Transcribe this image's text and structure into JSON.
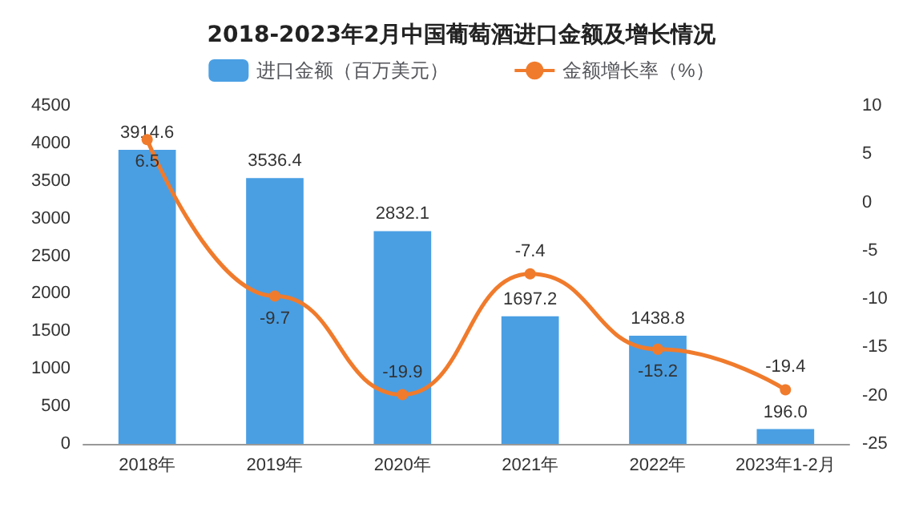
{
  "chart_data": {
    "type": "bar",
    "title": "2018-2023年2月中国葡萄酒进口金额及增长情况",
    "categories": [
      "2018年",
      "2019年",
      "2020年",
      "2021年",
      "2022年",
      "2023年1-2月"
    ],
    "series": [
      {
        "name": "进口金额（百万美元）",
        "color": "#4a9fe3",
        "values": [
          3914.6,
          3536.4,
          2832.1,
          1697.2,
          1438.8,
          196.0
        ],
        "value_labels": [
          "3914.6",
          "3536.4",
          "2832.1",
          "1697.2",
          "1438.8",
          "196.0"
        ]
      },
      {
        "name": "金额增长率（%）",
        "type": "line",
        "axis": "y2",
        "color": "#f07b2c",
        "values": [
          6.5,
          -9.7,
          -19.9,
          -7.4,
          -15.2,
          -19.4
        ],
        "value_labels": [
          "6.5",
          "-9.7",
          "-19.9",
          "-7.4",
          "-15.2",
          "-19.4"
        ]
      }
    ],
    "ylim": [
      0,
      4500
    ],
    "yticks": [
      0,
      500,
      1000,
      1500,
      2000,
      2500,
      3000,
      3500,
      4000,
      4500
    ],
    "y2lim": [
      -25,
      10
    ],
    "y2ticks": [
      -25,
      -20,
      -15,
      -10,
      -5,
      0,
      5,
      10
    ],
    "legend": "top",
    "marker": "circle",
    "line_style": "solid"
  }
}
